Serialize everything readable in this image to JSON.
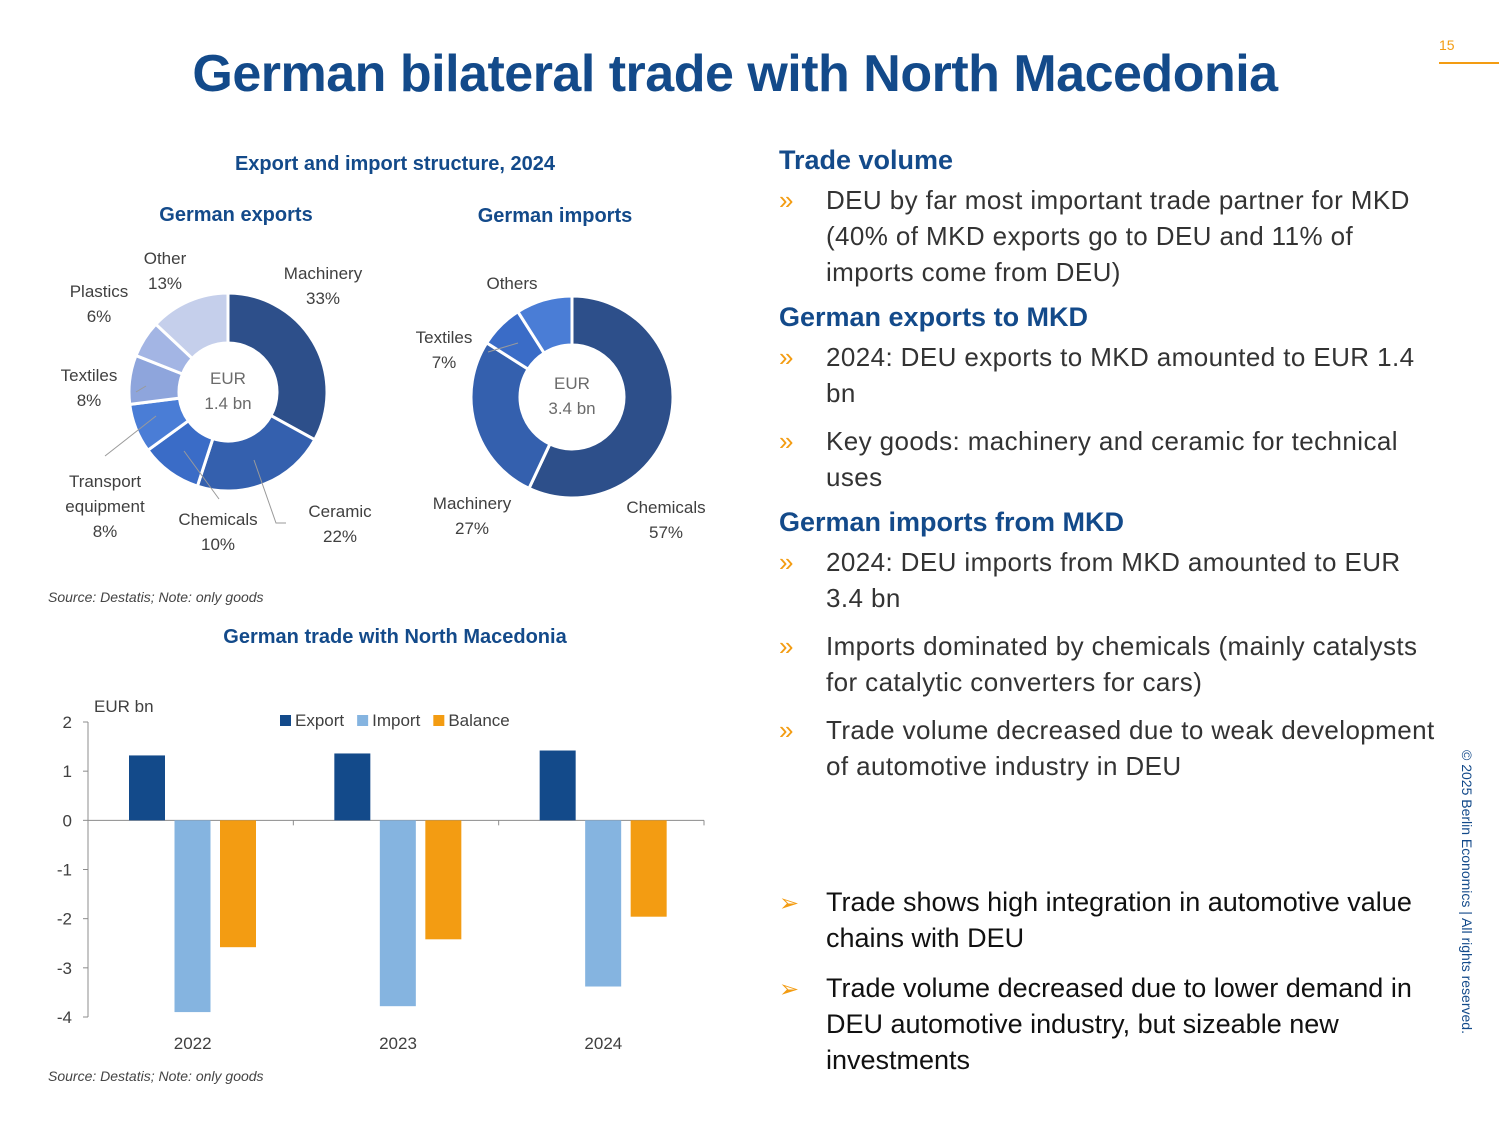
{
  "page_number": "15",
  "title": "German bilateral trade with North Macedonia",
  "copyright": "© 2025 Berlin Economics | All rights reserved.",
  "donut_section": {
    "title": "Export and import structure, 2024",
    "source": "Source: Destatis; Note: only goods"
  },
  "bar_section": {
    "source": "Source: Destatis; Note: only goods"
  },
  "chart_data": [
    {
      "type": "pie",
      "title": "German exports",
      "center_label": [
        "EUR",
        "1.4 bn"
      ],
      "slices": [
        {
          "label": "Machinery",
          "value": "33%",
          "pct": 33,
          "color": "#2D4F8A"
        },
        {
          "label": "Ceramic",
          "value": "22%",
          "pct": 22,
          "color": "#3460AE"
        },
        {
          "label": "Chemicals",
          "value": "10%",
          "pct": 10,
          "color": "#3A6CC7"
        },
        {
          "label": "Transport equipment",
          "label_lines": [
            "Transport",
            "equipment"
          ],
          "value": "8%",
          "pct": 8,
          "color": "#4A7DD6"
        },
        {
          "label": "Textiles",
          "value": "8%",
          "pct": 8,
          "color": "#8EA5DC"
        },
        {
          "label": "Plastics",
          "value": "6%",
          "pct": 6,
          "color": "#A3B5E4"
        },
        {
          "label": "Other",
          "value": "13%",
          "pct": 13,
          "color": "#C5CFEB"
        }
      ]
    },
    {
      "type": "pie",
      "title": "German imports",
      "center_label": [
        "EUR",
        "3.4 bn"
      ],
      "slices": [
        {
          "label": "Chemicals",
          "value": "57%",
          "pct": 57,
          "color": "#2D4F8A"
        },
        {
          "label": "Machinery",
          "value": "27%",
          "pct": 27,
          "color": "#3460AE"
        },
        {
          "label": "Textiles",
          "value": "7%",
          "pct": 7,
          "color": "#3A6CC7"
        },
        {
          "label": "Others",
          "value": "",
          "pct": 9,
          "color": "#4A7DD6"
        }
      ]
    },
    {
      "type": "bar",
      "title": "German trade with North Macedonia",
      "ylabel": "EUR bn",
      "categories": [
        "2022",
        "2023",
        "2024"
      ],
      "ylim": [
        -4,
        2
      ],
      "yticks": [
        2,
        1,
        0,
        -1,
        -2,
        -3,
        -4
      ],
      "legend_position": "top",
      "series": [
        {
          "name": "Export",
          "color": "#134A8A",
          "values": [
            1.32,
            1.36,
            1.42
          ]
        },
        {
          "name": "Import",
          "color": "#85B4E0",
          "values": [
            -3.9,
            -3.78,
            -3.38
          ]
        },
        {
          "name": "Balance",
          "color": "#F39C12",
          "values": [
            -2.58,
            -2.42,
            -1.96
          ]
        }
      ]
    }
  ],
  "right": {
    "sections": [
      {
        "heading": "Trade volume",
        "bullets": [
          "DEU by far most important trade partner for MKD (40% of MKD exports go to DEU and 11% of imports come from DEU)"
        ]
      },
      {
        "heading": "German exports to MKD",
        "bullets": [
          "2024: DEU exports to MKD amounted to EUR 1.4 bn",
          "Key goods: machinery and ceramic for technical uses"
        ]
      },
      {
        "heading": "German imports from MKD",
        "bullets": [
          "2024: DEU imports from MKD amounted to EUR 3.4 bn",
          "Imports dominated by chemicals (mainly catalysts for catalytic converters for cars)",
          "Trade volume decreased due to weak development of automotive industry in DEU"
        ]
      }
    ],
    "bullet_mark": "»",
    "takeaway_mark": "➢",
    "takeaways": [
      "Trade shows high integration in automotive value chains with DEU",
      "Trade volume decreased due to lower demand in DEU automotive industry, but sizeable new investments"
    ]
  }
}
